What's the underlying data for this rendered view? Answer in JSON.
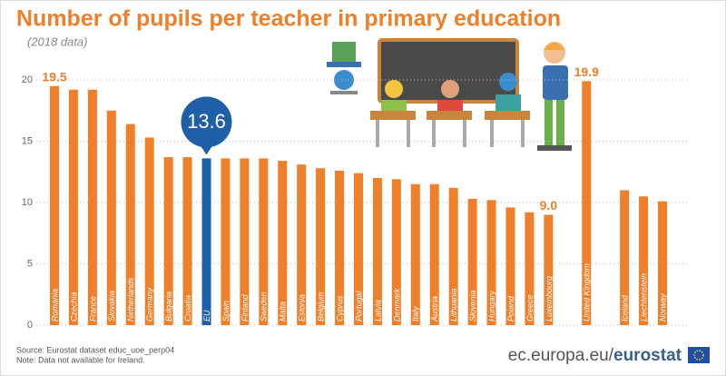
{
  "chart_data": {
    "type": "bar",
    "title": "Number of pupils per teacher in primary education",
    "subtitle": "(2018 data)",
    "categories": [
      "Romania",
      "Czechia",
      "France",
      "Slovakia",
      "Netherlands",
      "Germany",
      "Bulgaria",
      "Croatia",
      "EU",
      "Spain",
      "Finland",
      "Sweden",
      "Malta",
      "Estonia",
      "Belgium",
      "Cyprus",
      "Portugal",
      "Latvia",
      "Denmark",
      "Italy",
      "Austria",
      "Lithuania",
      "Slovenia",
      "Hungary",
      "Poland",
      "Greece",
      "Luxembourg",
      null,
      "United Kingdom",
      null,
      "Iceland",
      "Liechtenstein",
      "Norway"
    ],
    "values": [
      19.5,
      19.2,
      19.2,
      17.5,
      16.4,
      15.3,
      13.7,
      13.7,
      13.6,
      13.6,
      13.6,
      13.6,
      13.4,
      13.1,
      12.8,
      12.6,
      12.4,
      12.0,
      11.9,
      11.5,
      11.5,
      11.2,
      10.3,
      10.2,
      9.6,
      9.2,
      9.0,
      null,
      19.9,
      null,
      11.0,
      10.5,
      10.1
    ],
    "value_labels": [
      "19.5",
      null,
      null,
      null,
      null,
      null,
      null,
      null,
      "13.6",
      null,
      null,
      null,
      null,
      null,
      null,
      null,
      null,
      null,
      null,
      null,
      null,
      null,
      null,
      null,
      null,
      null,
      "9.0",
      null,
      "19.9",
      null,
      null,
      null,
      null
    ],
    "colors": [
      "#f07f2a",
      "#f07f2a",
      "#f07f2a",
      "#f07f2a",
      "#f07f2a",
      "#f07f2a",
      "#f07f2a",
      "#f07f2a",
      "#1f5fa8",
      "#f07f2a",
      "#f07f2a",
      "#f07f2a",
      "#f07f2a",
      "#f07f2a",
      "#f07f2a",
      "#f07f2a",
      "#f07f2a",
      "#f07f2a",
      "#f07f2a",
      "#f07f2a",
      "#f07f2a",
      "#f07f2a",
      "#f07f2a",
      "#f07f2a",
      "#f07f2a",
      "#f07f2a",
      "#f07f2a",
      null,
      "#f07f2a",
      null,
      "#f07f2a",
      "#f07f2a",
      "#f07f2a"
    ],
    "ylim": [
      0,
      20
    ],
    "yticks": [
      0,
      5,
      10,
      15,
      20
    ],
    "grid": true
  },
  "footer": {
    "source": "Source: Eurostat dataset educ_uoe_perp04",
    "note": "Note: Data not available for Ireland.",
    "site": "ec.europa.eu/",
    "brand": "eurostat"
  }
}
